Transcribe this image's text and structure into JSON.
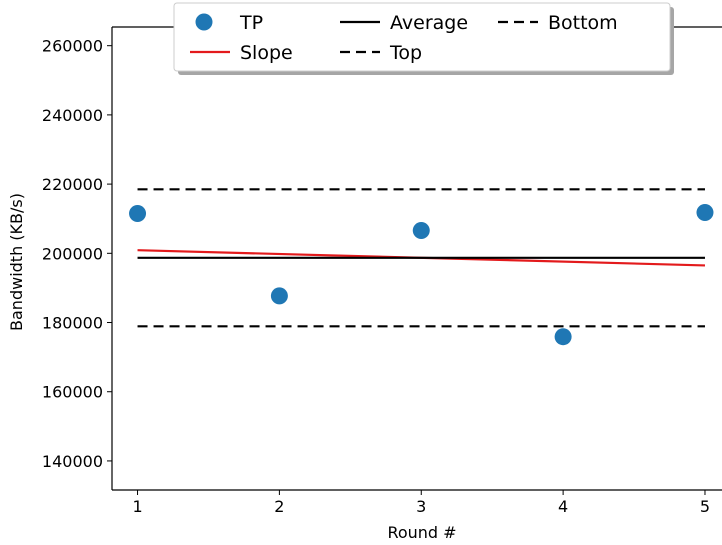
{
  "chart_data": {
    "type": "scatter",
    "xlabel": "Round #",
    "ylabel": "Bandwidth (KB/s)",
    "xlim": [
      0.82,
      5.12
    ],
    "ylim": [
      131600,
      265400
    ],
    "xticks": [
      1,
      2,
      3,
      4,
      5
    ],
    "yticks": [
      140000,
      160000,
      180000,
      200000,
      220000,
      240000,
      260000
    ],
    "grid": false,
    "legend_position": "top-center",
    "series": [
      {
        "name": "TP",
        "kind": "scatter",
        "color": "#1f77b4",
        "x": [
          1,
          2,
          3,
          4,
          5
        ],
        "y": [
          211500,
          187700,
          206600,
          175900,
          211800
        ]
      },
      {
        "name": "Slope",
        "kind": "line",
        "color": "#e31a1c",
        "style": "solid",
        "x": [
          1,
          5
        ],
        "y": [
          200900,
          196500
        ]
      },
      {
        "name": "Average",
        "kind": "line",
        "color": "#000000",
        "style": "solid",
        "x": [
          1,
          5
        ],
        "y": [
          198700,
          198700
        ]
      },
      {
        "name": "Top",
        "kind": "line",
        "color": "#000000",
        "style": "dashed",
        "x": [
          1,
          5
        ],
        "y": [
          218500,
          218500
        ]
      },
      {
        "name": "Bottom",
        "kind": "line",
        "color": "#000000",
        "style": "dashed",
        "x": [
          1,
          5
        ],
        "y": [
          178900,
          178900
        ]
      }
    ]
  }
}
